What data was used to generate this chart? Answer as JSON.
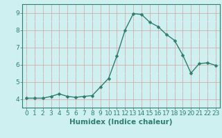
{
  "x": [
    0,
    1,
    2,
    3,
    4,
    5,
    6,
    7,
    8,
    9,
    10,
    11,
    12,
    13,
    14,
    15,
    16,
    17,
    18,
    19,
    20,
    21,
    22,
    23
  ],
  "y": [
    4.05,
    4.05,
    4.05,
    4.15,
    4.3,
    4.15,
    4.1,
    4.15,
    4.2,
    4.7,
    5.2,
    6.5,
    8.0,
    8.95,
    8.9,
    8.45,
    8.2,
    7.75,
    7.4,
    6.55,
    5.5,
    6.05,
    6.1,
    5.95
  ],
  "line_color": "#2e7d6e",
  "marker": "D",
  "marker_size": 2.5,
  "linewidth": 1.0,
  "bg_color": "#cef0f0",
  "plot_bg_color": "#cef0f0",
  "xlabel": "Humidex (Indice chaleur)",
  "ylabel": "",
  "xlim": [
    -0.5,
    23.5
  ],
  "ylim": [
    3.7,
    9.5
  ],
  "yticks": [
    4,
    5,
    6,
    7,
    8,
    9
  ],
  "xticks": [
    0,
    1,
    2,
    3,
    4,
    5,
    6,
    7,
    8,
    9,
    10,
    11,
    12,
    13,
    14,
    15,
    16,
    17,
    18,
    19,
    20,
    21,
    22,
    23
  ],
  "tick_fontsize": 6.5,
  "xlabel_fontsize": 7.5,
  "major_grid_color": "#d4a0a0",
  "minor_grid_color": "#d8eded",
  "spine_color": "#2e7d6e",
  "tick_color": "#2e7d6e"
}
